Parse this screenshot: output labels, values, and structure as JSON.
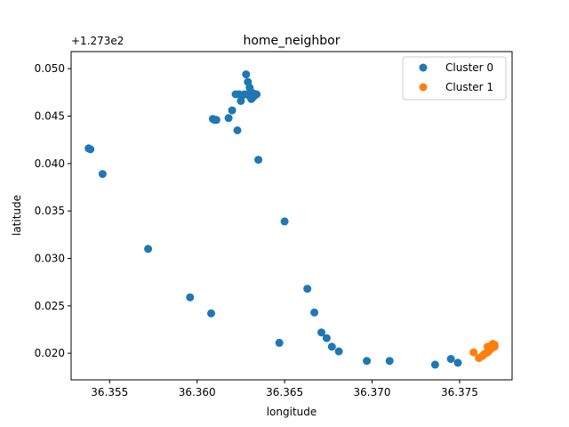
{
  "chart_data": {
    "type": "scatter",
    "title": "home_neighbor",
    "xlabel": "longitude",
    "ylabel": "latitude",
    "y_offset_label": "+1.273e2",
    "xlim": [
      36.3528,
      36.378
    ],
    "ylim": [
      0.0172,
      0.0518
    ],
    "x_ticks": [
      36.355,
      36.36,
      36.365,
      36.37,
      36.375
    ],
    "x_tick_labels": [
      "36.355",
      "36.360",
      "36.365",
      "36.370",
      "36.375"
    ],
    "y_ticks": [
      0.02,
      0.025,
      0.03,
      0.035,
      0.04,
      0.045,
      0.05
    ],
    "y_tick_labels": [
      "0.020",
      "0.025",
      "0.030",
      "0.035",
      "0.040",
      "0.045",
      "0.050"
    ],
    "grid": false,
    "legend_position": "top-right",
    "series": [
      {
        "name": "Cluster 0",
        "color": "#1f77b4",
        "points": [
          [
            36.3538,
            0.0416
          ],
          [
            36.3539,
            0.0415
          ],
          [
            36.3546,
            0.0389
          ],
          [
            36.3572,
            0.031
          ],
          [
            36.3596,
            0.0259
          ],
          [
            36.3608,
            0.0242
          ],
          [
            36.3609,
            0.0447
          ],
          [
            36.361,
            0.0446
          ],
          [
            36.3611,
            0.0446
          ],
          [
            36.3618,
            0.0448
          ],
          [
            36.362,
            0.0456
          ],
          [
            36.3622,
            0.0473
          ],
          [
            36.3623,
            0.0435
          ],
          [
            36.3624,
            0.0473
          ],
          [
            36.3625,
            0.0466
          ],
          [
            36.3626,
            0.0472
          ],
          [
            36.3627,
            0.0473
          ],
          [
            36.3628,
            0.0494
          ],
          [
            36.3629,
            0.0473
          ],
          [
            36.3629,
            0.0486
          ],
          [
            36.363,
            0.0471
          ],
          [
            36.363,
            0.048
          ],
          [
            36.3631,
            0.0468
          ],
          [
            36.3631,
            0.0475
          ],
          [
            36.3632,
            0.047
          ],
          [
            36.3632,
            0.0474
          ],
          [
            36.3633,
            0.0472
          ],
          [
            36.3634,
            0.0473
          ],
          [
            36.3635,
            0.0404
          ],
          [
            36.3647,
            0.0211
          ],
          [
            36.365,
            0.0339
          ],
          [
            36.3663,
            0.0268
          ],
          [
            36.3667,
            0.0243
          ],
          [
            36.3671,
            0.0222
          ],
          [
            36.3674,
            0.0216
          ],
          [
            36.3677,
            0.0207
          ],
          [
            36.3681,
            0.0202
          ],
          [
            36.3697,
            0.0192
          ],
          [
            36.371,
            0.0192
          ],
          [
            36.3736,
            0.0188
          ],
          [
            36.3745,
            0.0194
          ],
          [
            36.3749,
            0.019
          ]
        ]
      },
      {
        "name": "Cluster 1",
        "color": "#ff7f0e",
        "points": [
          [
            36.3758,
            0.0201
          ],
          [
            36.3761,
            0.0195
          ],
          [
            36.3763,
            0.0197
          ],
          [
            36.3764,
            0.0199
          ],
          [
            36.3765,
            0.02
          ],
          [
            36.3766,
            0.0207
          ],
          [
            36.3766,
            0.0201
          ],
          [
            36.3767,
            0.0203
          ],
          [
            36.3768,
            0.0205
          ],
          [
            36.3768,
            0.0208
          ],
          [
            36.3769,
            0.0206
          ],
          [
            36.3769,
            0.021
          ],
          [
            36.377,
            0.0209
          ],
          [
            36.377,
            0.0207
          ]
        ]
      }
    ]
  }
}
